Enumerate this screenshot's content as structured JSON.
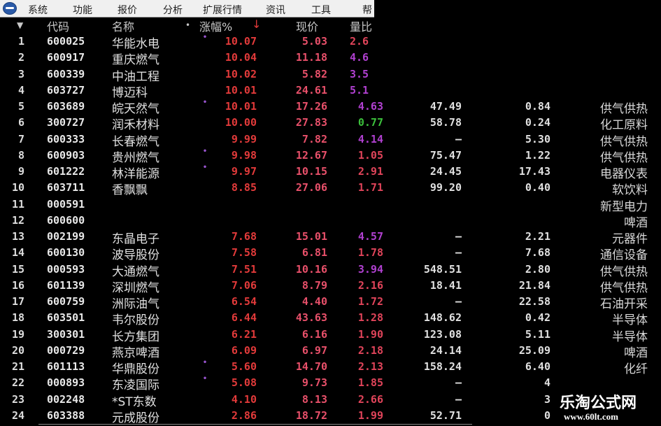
{
  "menu": [
    "系统",
    "功能",
    "报价",
    "分析",
    "扩展行情",
    "资讯",
    "工具",
    "帮"
  ],
  "headers": {
    "sort": "▼",
    "code": "代码",
    "name": "名称",
    "dot": "•",
    "change": "涨幅%",
    "sort_arrow": "↓",
    "price": "现价",
    "volume_ratio": "量比"
  },
  "colors": {
    "up": "#e23a3a",
    "purple": "#b040d0",
    "green": "#3cc03c",
    "red": "#e0445a"
  },
  "rows": [
    {
      "i": "1",
      "code": "600025",
      "name": "华能水电",
      "dot": true,
      "chg": "10.07",
      "price": "5.03",
      "vr": "2.6",
      "vrc": "red",
      "pe": "",
      "c8": "",
      "ind": ""
    },
    {
      "i": "2",
      "code": "600917",
      "name": "重庆燃气",
      "dot": false,
      "chg": "10.04",
      "price": "11.18",
      "vr": "4.6",
      "vrc": "purple",
      "pe": "",
      "c8": "",
      "ind": ""
    },
    {
      "i": "3",
      "code": "600339",
      "name": "中油工程",
      "dot": false,
      "chg": "10.02",
      "price": "5.82",
      "vr": "3.5",
      "vrc": "purple",
      "pe": "",
      "c8": "",
      "ind": ""
    },
    {
      "i": "4",
      "code": "603727",
      "name": "博迈科",
      "dot": false,
      "chg": "10.01",
      "price": "24.61",
      "vr": "5.1",
      "vrc": "purple",
      "pe": "",
      "c8": "",
      "ind": ""
    },
    {
      "i": "5",
      "code": "603689",
      "name": "皖天然气",
      "dot": true,
      "chg": "10.01",
      "price": "17.26",
      "vr": "4.63",
      "vrc": "purple",
      "pe": "47.49",
      "c8": "0.84",
      "ind": "供气供热"
    },
    {
      "i": "6",
      "code": "300727",
      "name": "润禾材料",
      "dot": false,
      "chg": "10.00",
      "price": "27.83",
      "vr": "0.77",
      "vrc": "green",
      "pe": "58.78",
      "c8": "0.24",
      "ind": "化工原料"
    },
    {
      "i": "7",
      "code": "600333",
      "name": "长春燃气",
      "dot": false,
      "chg": "9.99",
      "price": "7.82",
      "vr": "4.14",
      "vrc": "purple",
      "pe": "—",
      "c8": "5.30",
      "ind": "供气供热"
    },
    {
      "i": "8",
      "code": "600903",
      "name": "贵州燃气",
      "dot": true,
      "chg": "9.98",
      "price": "12.67",
      "vr": "1.05",
      "vrc": "red",
      "pe": "75.47",
      "c8": "1.22",
      "ind": "供气供热"
    },
    {
      "i": "9",
      "code": "601222",
      "name": "林洋能源",
      "dot": true,
      "chg": "9.97",
      "price": "10.15",
      "vr": "2.91",
      "vrc": "red",
      "pe": "24.45",
      "c8": "17.43",
      "ind": "电器仪表"
    },
    {
      "i": "10",
      "code": "603711",
      "name": "香飘飘",
      "dot": false,
      "chg": "8.85",
      "price": "27.06",
      "vr": "1.71",
      "vrc": "red",
      "pe": "99.20",
      "c8": "0.40",
      "ind": "软饮料"
    },
    {
      "i": "11",
      "code": "000591",
      "name": "",
      "dot": false,
      "chg": "",
      "price": "",
      "vr": "",
      "vrc": "red",
      "pe": "",
      "c8": "",
      "ind": "新型电力"
    },
    {
      "i": "12",
      "code": "600600",
      "name": "",
      "dot": false,
      "chg": "",
      "price": "",
      "vr": "",
      "vrc": "red",
      "pe": "",
      "c8": "",
      "ind": "啤酒"
    },
    {
      "i": "13",
      "code": "002199",
      "name": "东晶电子",
      "dot": false,
      "chg": "7.68",
      "price": "15.01",
      "vr": "4.57",
      "vrc": "purple",
      "pe": "—",
      "c8": "2.21",
      "ind": "元器件"
    },
    {
      "i": "14",
      "code": "600130",
      "name": "波导股份",
      "dot": false,
      "chg": "7.58",
      "price": "6.81",
      "vr": "1.78",
      "vrc": "red",
      "pe": "—",
      "c8": "7.68",
      "ind": "通信设备"
    },
    {
      "i": "15",
      "code": "000593",
      "name": "大通燃气",
      "dot": false,
      "chg": "7.51",
      "price": "10.16",
      "vr": "3.94",
      "vrc": "purple",
      "pe": "548.51",
      "c8": "2.80",
      "ind": "供气供热"
    },
    {
      "i": "16",
      "code": "601139",
      "name": "深圳燃气",
      "dot": false,
      "chg": "7.06",
      "price": "8.79",
      "vr": "2.16",
      "vrc": "red",
      "pe": "18.41",
      "c8": "21.84",
      "ind": "供气供热"
    },
    {
      "i": "17",
      "code": "600759",
      "name": "洲际油气",
      "dot": false,
      "chg": "6.54",
      "price": "4.40",
      "vr": "1.72",
      "vrc": "red",
      "pe": "—",
      "c8": "22.58",
      "ind": "石油开采"
    },
    {
      "i": "18",
      "code": "603501",
      "name": "韦尔股份",
      "dot": false,
      "chg": "6.44",
      "price": "43.63",
      "vr": "1.28",
      "vrc": "red",
      "pe": "148.62",
      "c8": "0.42",
      "ind": "半导体"
    },
    {
      "i": "19",
      "code": "300301",
      "name": "长方集团",
      "dot": false,
      "chg": "6.21",
      "price": "6.16",
      "vr": "1.90",
      "vrc": "red",
      "pe": "123.08",
      "c8": "5.11",
      "ind": "半导体"
    },
    {
      "i": "20",
      "code": "000729",
      "name": "燕京啤酒",
      "dot": false,
      "chg": "6.09",
      "price": "6.97",
      "vr": "2.18",
      "vrc": "red",
      "pe": "24.14",
      "c8": "25.09",
      "ind": "啤酒"
    },
    {
      "i": "21",
      "code": "601113",
      "name": "华鼎股份",
      "dot": true,
      "chg": "5.60",
      "price": "14.70",
      "vr": "2.13",
      "vrc": "red",
      "pe": "158.24",
      "c8": "6.40",
      "ind": "化纤"
    },
    {
      "i": "22",
      "code": "000893",
      "name": "东凌国际",
      "dot": true,
      "chg": "5.08",
      "price": "9.73",
      "vr": "1.85",
      "vrc": "red",
      "pe": "—",
      "c8": "4",
      "ind": ""
    },
    {
      "i": "23",
      "code": "002248",
      "name": "*ST东数",
      "dot": false,
      "chg": "4.10",
      "price": "8.13",
      "vr": "2.66",
      "vrc": "red",
      "pe": "—",
      "c8": "3",
      "ind": ""
    },
    {
      "i": "24",
      "code": "603388",
      "name": "元成股份",
      "dot": false,
      "chg": "2.86",
      "price": "18.72",
      "vr": "1.99",
      "vrc": "red",
      "pe": "52.71",
      "c8": "0",
      "ind": ""
    }
  ],
  "watermark": {
    "title": "乐淘公式网",
    "url": "www.60lt.com"
  }
}
